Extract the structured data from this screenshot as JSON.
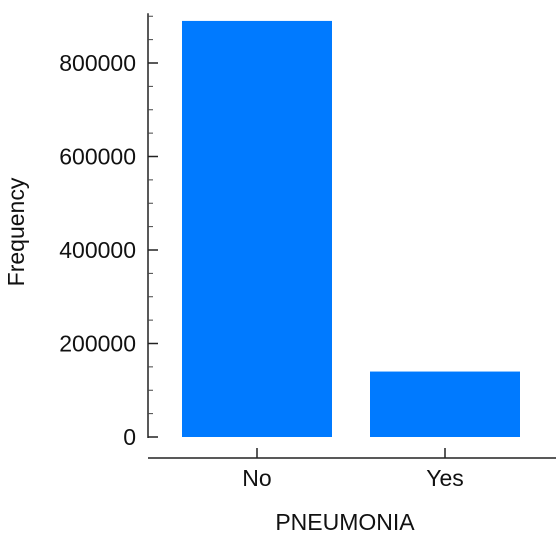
{
  "chart_data": {
    "type": "bar",
    "categories": [
      "No",
      "Yes"
    ],
    "values": [
      890000,
      140000
    ],
    "xlabel": "PNEUMONIA",
    "ylabel": "Frequency",
    "ylim": [
      0,
      900000
    ],
    "y_ticks": [
      "0",
      "200000",
      "400000",
      "600000",
      "800000"
    ],
    "y_tick_values": [
      0,
      200000,
      400000,
      600000,
      800000
    ],
    "bar_color": "#007aff",
    "grid": false,
    "legend": false
  }
}
